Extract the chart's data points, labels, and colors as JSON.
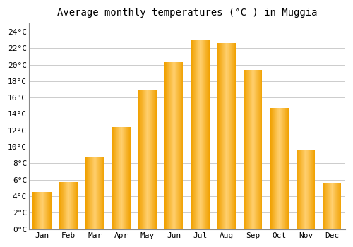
{
  "title": "Average monthly temperatures (°C ) in Muggia",
  "months": [
    "Jan",
    "Feb",
    "Mar",
    "Apr",
    "May",
    "Jun",
    "Jul",
    "Aug",
    "Sep",
    "Oct",
    "Nov",
    "Dec"
  ],
  "values": [
    4.5,
    5.7,
    8.7,
    12.4,
    17.0,
    20.3,
    23.0,
    22.6,
    19.4,
    14.7,
    9.6,
    5.6
  ],
  "bar_color_center": "#FFB84D",
  "bar_color_edge": "#F0A000",
  "ylim": [
    0,
    25
  ],
  "yticks": [
    0,
    2,
    4,
    6,
    8,
    10,
    12,
    14,
    16,
    18,
    20,
    22,
    24
  ],
  "background_color": "#ffffff",
  "plot_bg_color": "#ffffff",
  "grid_color": "#cccccc",
  "title_fontsize": 10,
  "tick_fontsize": 8,
  "font_family": "monospace",
  "bar_width": 0.7
}
